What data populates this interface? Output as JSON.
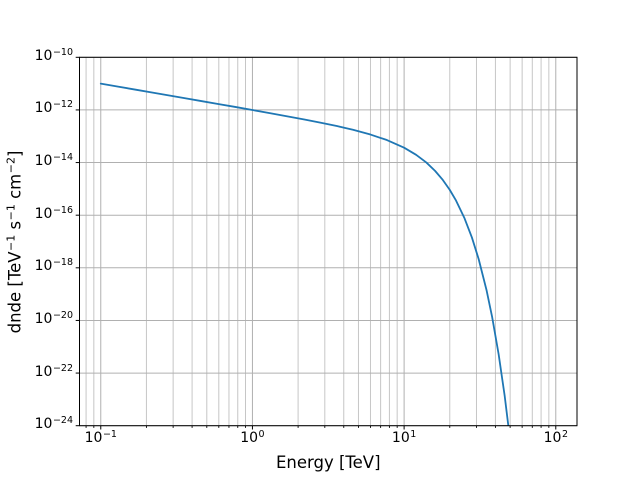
{
  "figure": {
    "background": "#ffffff",
    "title": ""
  },
  "chart_data": {
    "type": "line",
    "title": "",
    "xlabel": "Energy [TeV]",
    "ylabel": "dnde [TeV⁻¹ s⁻¹ cm⁻²]",
    "ylabel_parts": [
      [
        "t",
        "dnde [TeV"
      ],
      [
        "s",
        "−1"
      ],
      [
        "t",
        " s"
      ],
      [
        "s",
        "−1"
      ],
      [
        "t",
        " cm"
      ],
      [
        "s",
        "−2"
      ],
      [
        "t",
        "]"
      ]
    ],
    "x_scale": "log",
    "y_scale": "log",
    "xlim": [
      0.0724,
      138.0
    ],
    "ylim": [
      1e-24,
      1e-10
    ],
    "x_major_tick_exponents": [
      -1,
      0,
      1,
      2
    ],
    "y_major_tick_exponents": [
      -10,
      -12,
      -14,
      -16,
      -18,
      -20,
      -22,
      -24
    ],
    "x_tick_labels": [
      "10⁻¹",
      "10⁰",
      "10¹",
      "10²"
    ],
    "y_tick_labels": [
      "10⁻¹⁰",
      "10⁻¹²",
      "10⁻¹⁴",
      "10⁻¹⁶",
      "10⁻¹⁸",
      "10⁻²⁰",
      "10⁻²²",
      "10⁻²⁴"
    ],
    "grid": {
      "major": true,
      "minor_x": true,
      "minor_y": false,
      "legend": "none"
    },
    "colors": {
      "line": "#1f77b4",
      "grid_major": "#b0b0b0",
      "grid_minor": "#c6c6c6",
      "spine": "#000000",
      "background": "#ffffff"
    },
    "series": [
      {
        "name": "dnde",
        "x": [
          0.1,
          0.13,
          0.17,
          0.22,
          0.28,
          0.36,
          0.46,
          0.6,
          0.77,
          1.0,
          1.3,
          1.7,
          2.2,
          2.8,
          3.6,
          4.6,
          6.0,
          7.7,
          10.0,
          12.0,
          14.0,
          16.0,
          18.0,
          20.0,
          22.0,
          25.0,
          28.0,
          31.0,
          35.0,
          38.0,
          42.0,
          46.0,
          50.0,
          55.0
        ],
        "y": [
          1e-11,
          7.69e-12,
          5.88e-12,
          4.54e-12,
          3.57e-12,
          2.77e-12,
          2.17e-12,
          1.66e-12,
          1.3e-12,
          9.9e-13,
          7.56e-13,
          5.71e-13,
          4.33e-13,
          3.3e-13,
          2.44e-13,
          1.76e-13,
          1.16e-13,
          7.18e-14,
          3.68e-14,
          1.97e-14,
          1.01e-14,
          4.83e-15,
          2.18e-15,
          9.16e-16,
          3.59e-16,
          7.72e-17,
          1.41e-17,
          2.16e-18,
          1.37e-19,
          1.41e-20,
          5.2e-22,
          1.4e-23,
          2.78e-25,
          1.33e-27
        ]
      }
    ]
  }
}
